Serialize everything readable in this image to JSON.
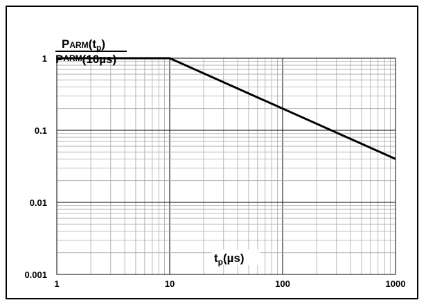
{
  "chart_data": {
    "type": "line",
    "xscale": "log",
    "yscale": "log",
    "xlim": [
      1,
      1000
    ],
    "ylim": [
      0.001,
      1
    ],
    "x_ticks": [
      "1",
      "10",
      "100",
      "1000"
    ],
    "y_ticks": [
      "1",
      "0.1",
      "0.01",
      "0.001"
    ],
    "ylabel": {
      "numerator": {
        "main": "P",
        "sub_small": "ARM",
        "rest": "(t",
        "subscript": "p",
        "close": ")"
      },
      "denominator": {
        "main": "P",
        "sub_small": "ARM",
        "rest": "(10µs)"
      }
    },
    "xlabel": {
      "main": "t",
      "subscript": "p",
      "rest": "(µs)"
    },
    "grid": true,
    "series": [
      {
        "x": [
          1,
          10,
          1000
        ],
        "y": [
          1,
          1,
          0.04
        ]
      }
    ],
    "colors": {
      "line": "#000000",
      "grid": "#a8a8a8",
      "axis": "#000000"
    }
  }
}
